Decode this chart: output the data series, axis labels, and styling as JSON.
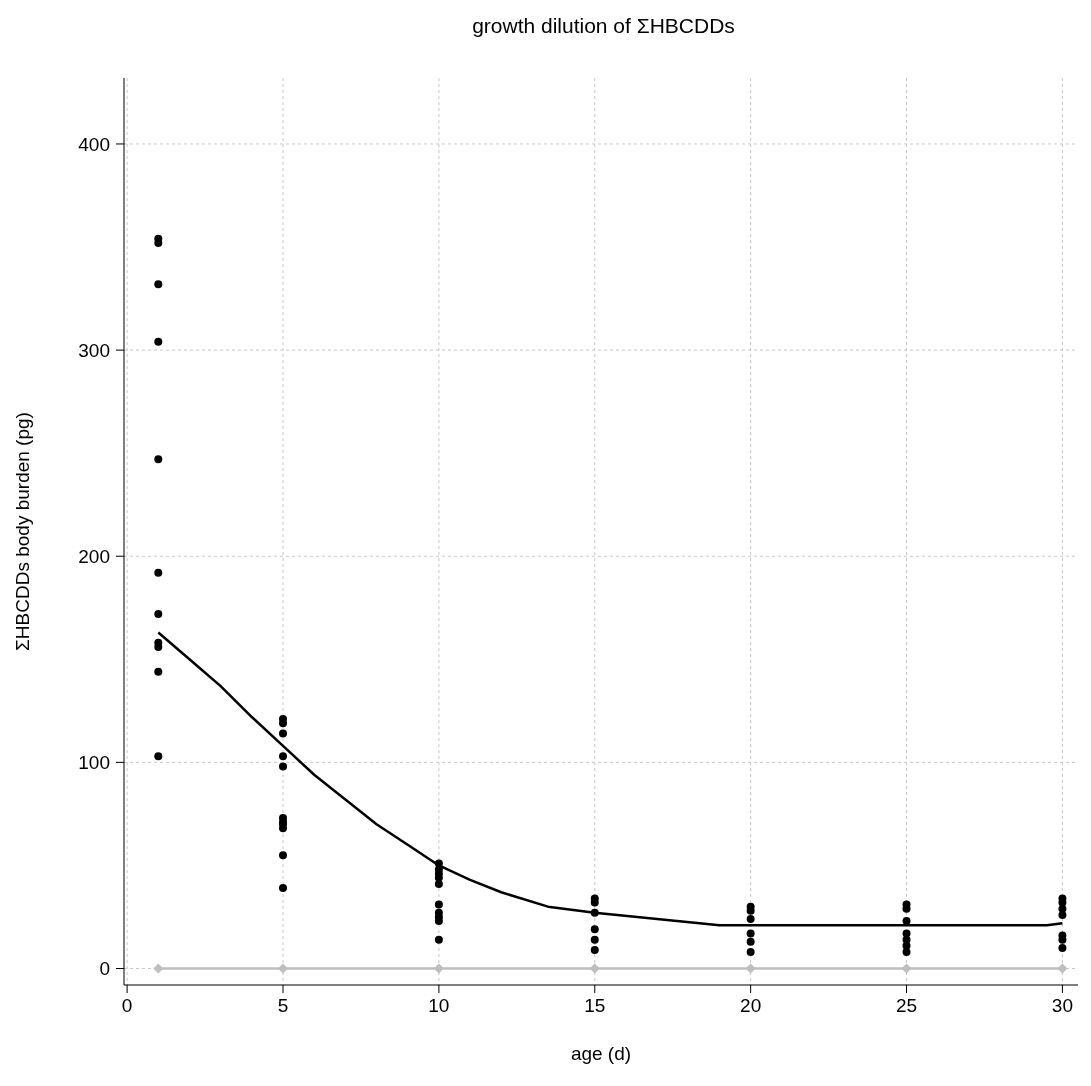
{
  "chart_data": {
    "type": "scatter",
    "title": "growth dilution of ΣHBCDDs",
    "xlabel": "age (d)",
    "ylabel": "ΣHBCDDs body burden (pg)",
    "xlim": [
      -0.1,
      30.5
    ],
    "xticks": [
      0,
      5,
      10,
      15,
      20,
      25,
      30
    ],
    "ylim": [
      -8,
      432
    ],
    "yticks": [
      0,
      100,
      200,
      300,
      400
    ],
    "grid": true,
    "series": [
      {
        "color": "#000000",
        "marker": "circle",
        "x": [
          1,
          1,
          1,
          1,
          1,
          1,
          1,
          1,
          1,
          1,
          1,
          5,
          5,
          5,
          5,
          5,
          5,
          5,
          5,
          5,
          5,
          5,
          10,
          10,
          10,
          10,
          10,
          10,
          10,
          10,
          10,
          10,
          15,
          15,
          15,
          15,
          15,
          15,
          20,
          20,
          20,
          20,
          20,
          20,
          25,
          25,
          25,
          25,
          25,
          25,
          25,
          30,
          30,
          30,
          30,
          30,
          30,
          30
        ],
        "values": [
          354,
          352,
          332,
          304,
          247,
          192,
          172,
          158,
          156,
          144,
          103,
          121,
          119,
          114,
          103,
          98,
          73,
          71,
          70,
          68,
          55,
          39,
          51,
          48,
          46,
          44,
          41,
          31,
          27,
          25,
          23,
          14,
          34,
          32,
          27,
          19,
          14,
          9,
          30,
          28,
          24,
          17,
          13,
          8,
          31,
          29,
          23,
          17,
          14,
          11,
          8,
          34,
          32,
          29,
          26,
          16,
          14,
          10
        ]
      },
      {
        "type": "line",
        "color": "#000000",
        "marker": "none",
        "line_style": "solid",
        "x": [
          1,
          2,
          3,
          4,
          5,
          6,
          7,
          8,
          9,
          10,
          11,
          12,
          13.5,
          15,
          17,
          19,
          20,
          25,
          29.5,
          30
        ],
        "values": [
          163,
          150,
          137,
          122,
          108,
          94,
          82,
          70,
          60,
          50,
          43,
          37,
          30,
          27,
          24,
          21,
          21,
          21,
          21,
          22
        ]
      },
      {
        "type": "line",
        "color": "#bebebe",
        "marker": "diamond",
        "line_style": "solid",
        "x": [
          1,
          5,
          10,
          15,
          20,
          25,
          30
        ],
        "values": [
          0,
          0,
          0,
          0,
          0,
          0,
          0
        ]
      }
    ]
  }
}
